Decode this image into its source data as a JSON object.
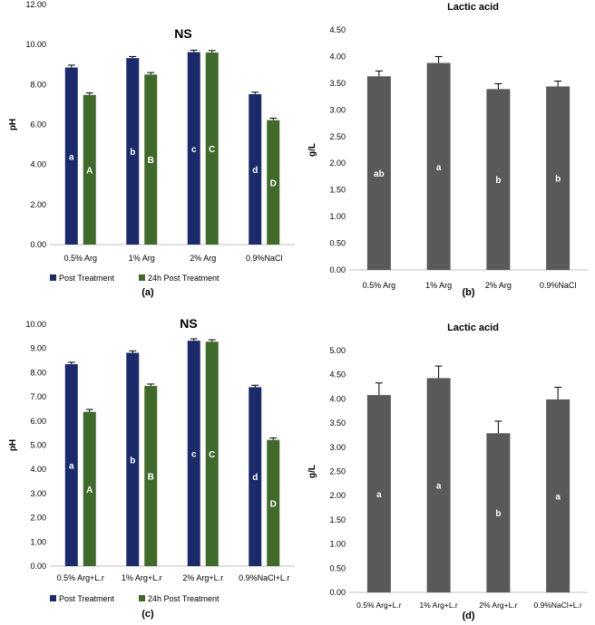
{
  "colors": {
    "post": "#1b2a6b",
    "h24": "#3f6a2a",
    "gray": "#595959",
    "axis": "#bfbfbf",
    "text": "#000000",
    "letter": "#ffffff"
  },
  "chart_data": [
    {
      "id": "a",
      "type": "bar",
      "panel_label": "(a)",
      "title": "NS",
      "ylabel": "pH",
      "xlabel": "",
      "ylim": [
        0,
        12
      ],
      "ytick_step": 2,
      "ytick_decimals": 2,
      "categories": [
        "0.5% Arg",
        "1% Arg",
        "2% Arg",
        "0.9%NaCl"
      ],
      "series": [
        {
          "name": "Post Treatment",
          "color": "post",
          "values": [
            8.85,
            9.32,
            9.62,
            7.52
          ],
          "errors": [
            0.12,
            0.08,
            0.1,
            0.1
          ],
          "letters": [
            "a",
            "b",
            "c",
            "d"
          ]
        },
        {
          "name": "24h Post Treatment",
          "color": "h24",
          "values": [
            7.48,
            8.5,
            9.6,
            6.22
          ],
          "errors": [
            0.1,
            0.1,
            0.1,
            0.1
          ],
          "letters": [
            "A",
            "B",
            "C",
            "D"
          ]
        }
      ],
      "legend": [
        "Post Treatment",
        "24h Post Treatment"
      ]
    },
    {
      "id": "b",
      "type": "bar",
      "panel_label": "(b)",
      "title": "Lactic acid",
      "ylabel": "g/L",
      "xlabel": "",
      "ylim": [
        0,
        4.5
      ],
      "ytick_step": 0.5,
      "ytick_decimals": 2,
      "categories": [
        "0.5% Arg",
        "1% Arg",
        "2% Arg",
        "0.9%NaCl"
      ],
      "series": [
        {
          "name": "Lactic acid",
          "color": "gray",
          "values": [
            3.63,
            3.88,
            3.39,
            3.44
          ],
          "errors": [
            0.1,
            0.12,
            0.1,
            0.1
          ],
          "letters": [
            "ab",
            "a",
            "b",
            "b"
          ]
        }
      ],
      "legend": []
    },
    {
      "id": "c",
      "type": "bar",
      "panel_label": "(c)",
      "title": "NS",
      "ylabel": "pH",
      "xlabel": "",
      "ylim": [
        0,
        10
      ],
      "ytick_step": 1,
      "ytick_decimals": 2,
      "categories": [
        "0.5% Arg+L.r",
        "1% Arg+L.r",
        "2% Arg+L.r",
        "0.9%NaCl+L.r"
      ],
      "series": [
        {
          "name": "Post Treatment",
          "color": "post",
          "values": [
            8.35,
            8.82,
            9.32,
            7.4
          ],
          "errors": [
            0.08,
            0.08,
            0.08,
            0.08
          ],
          "letters": [
            "a",
            "b",
            "c",
            "d"
          ]
        },
        {
          "name": "24h Post Treatment",
          "color": "h24",
          "values": [
            6.38,
            7.45,
            9.28,
            5.22
          ],
          "errors": [
            0.1,
            0.08,
            0.08,
            0.08
          ],
          "letters": [
            "A",
            "B",
            "C",
            "D"
          ]
        }
      ],
      "legend": [
        "Post Treatment",
        "24h Post Treatment"
      ]
    },
    {
      "id": "d",
      "type": "bar",
      "panel_label": "(d)",
      "title": "Lactic acid",
      "ylabel": "g/L",
      "xlabel": "",
      "ylim": [
        0,
        5
      ],
      "ytick_step": 0.5,
      "ytick_decimals": 2,
      "categories": [
        "0.5% Arg+L.r",
        "1% Arg+L.r",
        "2% Arg+L.r",
        "0.9%NaCl+L.r"
      ],
      "series": [
        {
          "name": "Lactic acid",
          "color": "gray",
          "values": [
            4.08,
            4.43,
            3.29,
            3.99
          ],
          "errors": [
            0.25,
            0.25,
            0.25,
            0.25
          ],
          "letters": [
            "a",
            "a",
            "b",
            "a"
          ]
        }
      ],
      "legend": []
    }
  ]
}
